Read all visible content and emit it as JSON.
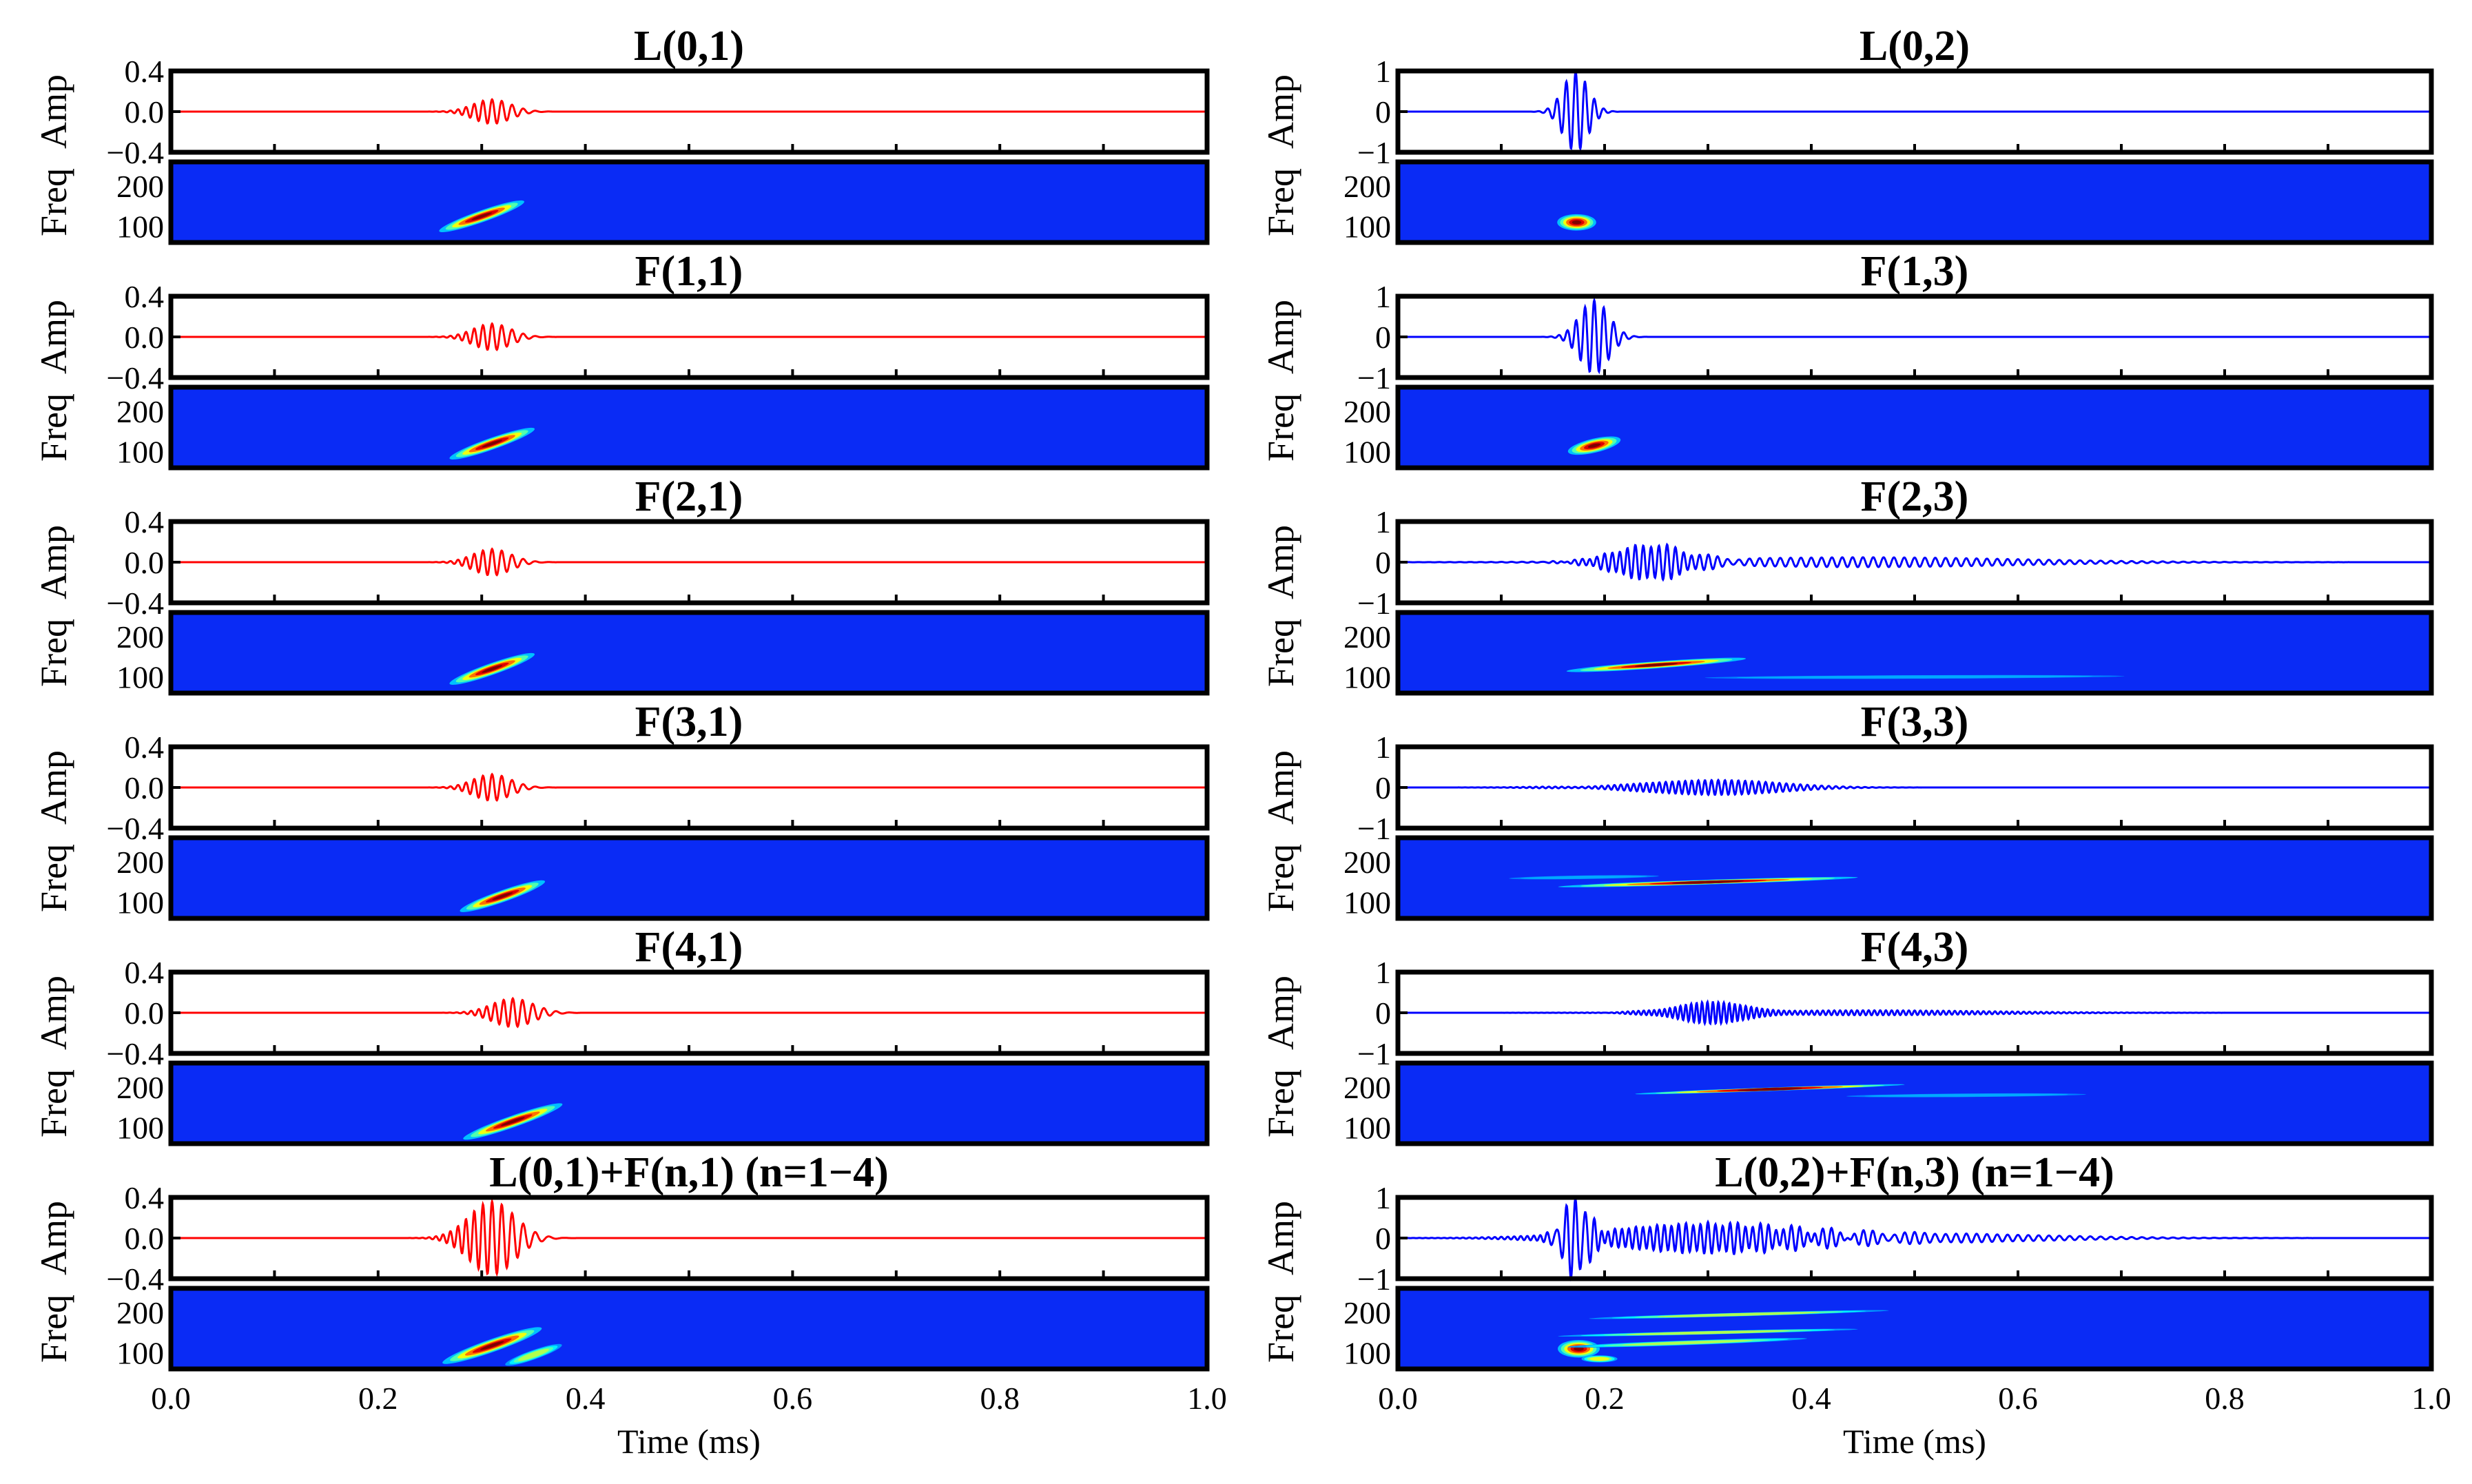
{
  "chart_data": {
    "type": "line",
    "description_layout": "2 columns x 6 rows; each row = waveform (Amp) panel above a time-frequency (Freq) map",
    "xlabel": "Time (ms)",
    "xlim": [
      0.0,
      1.0
    ],
    "xticks": [
      "0.0",
      "0.2",
      "0.4",
      "0.6",
      "0.8",
      "1.0"
    ],
    "amp_ylabel": "Amp",
    "freq_ylabel": "Freq",
    "freq_ylim": [
      60,
      260
    ],
    "freq_ticks": [
      "200",
      "100"
    ],
    "freq_tick_values": [
      200,
      100
    ],
    "columns": [
      {
        "color": "#ff0000",
        "amp_ylim": [
          -0.4,
          0.4
        ],
        "amp_ticks": [
          "0.4",
          "0.0",
          "−0.4"
        ],
        "amp_tick_values": [
          0.4,
          0.0,
          -0.4
        ],
        "modes": [
          {
            "title": "L(0,1)",
            "packets": [
              {
                "t0": 0.31,
                "amp": 0.12,
                "width": 0.018,
                "freq": 110,
                "chirp": -700,
                "fmap": [
                  {
                    "t0": 0.3,
                    "f0": 125,
                    "slope": -900,
                    "dt": 0.03,
                    "df": 10,
                    "strength": 1
                  }
                ]
              }
            ]
          },
          {
            "title": "F(1,1)",
            "packets": [
              {
                "t0": 0.31,
                "amp": 0.13,
                "width": 0.018,
                "freq": 110,
                "chirp": -700,
                "fmap": [
                  {
                    "t0": 0.31,
                    "f0": 120,
                    "slope": -900,
                    "dt": 0.03,
                    "df": 10,
                    "strength": 1
                  }
                ]
              }
            ]
          },
          {
            "title": "F(2,1)",
            "packets": [
              {
                "t0": 0.31,
                "amp": 0.13,
                "width": 0.018,
                "freq": 110,
                "chirp": -700,
                "fmap": [
                  {
                    "t0": 0.31,
                    "f0": 120,
                    "slope": -900,
                    "dt": 0.03,
                    "df": 10,
                    "strength": 1
                  }
                ]
              }
            ]
          },
          {
            "title": "F(3,1)",
            "packets": [
              {
                "t0": 0.31,
                "amp": 0.13,
                "width": 0.018,
                "freq": 110,
                "chirp": -700,
                "fmap": [
                  {
                    "t0": 0.32,
                    "f0": 115,
                    "slope": -900,
                    "dt": 0.03,
                    "df": 10,
                    "strength": 1
                  }
                ]
              }
            ]
          },
          {
            "title": "F(4,1)",
            "packets": [
              {
                "t0": 0.33,
                "amp": 0.14,
                "width": 0.02,
                "freq": 110,
                "chirp": -700,
                "fmap": [
                  {
                    "t0": 0.33,
                    "f0": 115,
                    "slope": -900,
                    "dt": 0.035,
                    "df": 10,
                    "strength": 1
                  }
                ]
              }
            ]
          },
          {
            "title": "L(0,1)+F(n,1) (n=1−4)",
            "packets": [
              {
                "t0": 0.31,
                "amp": 0.36,
                "width": 0.022,
                "freq": 110,
                "chirp": -700,
                "fmap": [
                  {
                    "t0": 0.31,
                    "f0": 118,
                    "slope": -900,
                    "dt": 0.035,
                    "df": 11,
                    "strength": 1
                  },
                  {
                    "t0": 0.35,
                    "f0": 95,
                    "slope": -900,
                    "dt": 0.02,
                    "df": 8,
                    "strength": 0.6
                  }
                ]
              }
            ]
          }
        ]
      },
      {
        "color": "#0000ff",
        "amp_ylim": [
          -1,
          1
        ],
        "amp_ticks": [
          "1",
          "0",
          "−1"
        ],
        "amp_tick_values": [
          1,
          0,
          -1
        ],
        "modes": [
          {
            "title": "L(0,2)",
            "packets": [
              {
                "t0": 0.172,
                "amp": 0.98,
                "width": 0.012,
                "freq": 110,
                "chirp": 0,
                "fmap": [
                  {
                    "t0": 0.173,
                    "f0": 110,
                    "slope": 0,
                    "dt": 0.013,
                    "df": 14,
                    "strength": 1
                  }
                ]
              }
            ]
          },
          {
            "title": "F(1,3)",
            "packets": [
              {
                "t0": 0.19,
                "amp": 0.9,
                "width": 0.014,
                "freq": 110,
                "chirp": -400,
                "fmap": [
                  {
                    "t0": 0.19,
                    "f0": 115,
                    "slope": -600,
                    "dt": 0.018,
                    "df": 12,
                    "strength": 1
                  }
                ]
              }
            ]
          },
          {
            "title": "F(2,3)",
            "packets": [
              {
                "t0": 0.245,
                "amp": 0.42,
                "width": 0.035,
                "freq": 130,
                "chirp": -150,
                "fmap": [
                  {
                    "t0": 0.25,
                    "f0": 130,
                    "slope": -180,
                    "dt": 0.06,
                    "df": 6,
                    "strength": 1
                  }
                ]
              },
              {
                "t0": 0.45,
                "amp": 0.12,
                "width": 0.15,
                "freq": 100,
                "chirp": 0,
                "fmap": [
                  {
                    "t0": 0.5,
                    "f0": 100,
                    "slope": -10,
                    "dt": 0.14,
                    "df": 3,
                    "strength": 0.3
                  }
                ]
              }
            ]
          },
          {
            "title": "F(3,3)",
            "packets": [
              {
                "t0": 0.31,
                "amp": 0.18,
                "width": 0.06,
                "freq": 155,
                "chirp": -100,
                "fmap": [
                  {
                    "t0": 0.3,
                    "f0": 150,
                    "slope": -80,
                    "dt": 0.1,
                    "df": 4,
                    "strength": 1
                  }
                ]
              },
              {
                "t0": 0.19,
                "amp": 0.03,
                "width": 0.05,
                "freq": 160,
                "chirp": 0,
                "fmap": [
                  {
                    "t0": 0.18,
                    "f0": 162,
                    "slope": -40,
                    "dt": 0.05,
                    "df": 3,
                    "strength": 0.3
                  }
                ]
              }
            ]
          },
          {
            "title": "F(4,3)",
            "packets": [
              {
                "t0": 0.31,
                "amp": 0.25,
                "width": 0.04,
                "freq": 190,
                "chirp": -100,
                "fmap": [
                  {
                    "t0": 0.36,
                    "f0": 195,
                    "slope": -90,
                    "dt": 0.09,
                    "df": 3,
                    "strength": 1
                  },
                  {
                    "t0": 0.55,
                    "f0": 180,
                    "slope": -20,
                    "dt": 0.08,
                    "df": 3,
                    "strength": 0.3
                  }
                ]
              },
              {
                "t0": 0.45,
                "amp": 0.06,
                "width": 0.12,
                "freq": 180,
                "chirp": 0,
                "fmap": []
              }
            ]
          },
          {
            "title": "L(0,2)+F(n,3) (n=1−4)",
            "packets": [
              {
                "t0": 0.172,
                "amp": 0.95,
                "width": 0.012,
                "freq": 110,
                "chirp": 0,
                "fmap": [
                  {
                    "t0": 0.175,
                    "f0": 110,
                    "slope": 0,
                    "dt": 0.014,
                    "df": 15,
                    "strength": 1
                  },
                  {
                    "t0": 0.195,
                    "f0": 85,
                    "slope": 0,
                    "dt": 0.012,
                    "df": 6,
                    "strength": 0.7
                  }
                ]
              },
              {
                "t0": 0.3,
                "amp": 0.35,
                "width": 0.09,
                "freq": 140,
                "chirp": -100,
                "fmap": [
                  {
                    "t0": 0.33,
                    "f0": 195,
                    "slope": -70,
                    "dt": 0.1,
                    "df": 3,
                    "strength": 0.6
                  },
                  {
                    "t0": 0.3,
                    "f0": 150,
                    "slope": -60,
                    "dt": 0.1,
                    "df": 3,
                    "strength": 0.6
                  },
                  {
                    "t0": 0.28,
                    "f0": 125,
                    "slope": -90,
                    "dt": 0.08,
                    "df": 4,
                    "strength": 0.6
                  }
                ]
              },
              {
                "t0": 0.48,
                "amp": 0.12,
                "width": 0.13,
                "freq": 100,
                "chirp": 0,
                "fmap": []
              }
            ]
          }
        ]
      }
    ]
  }
}
